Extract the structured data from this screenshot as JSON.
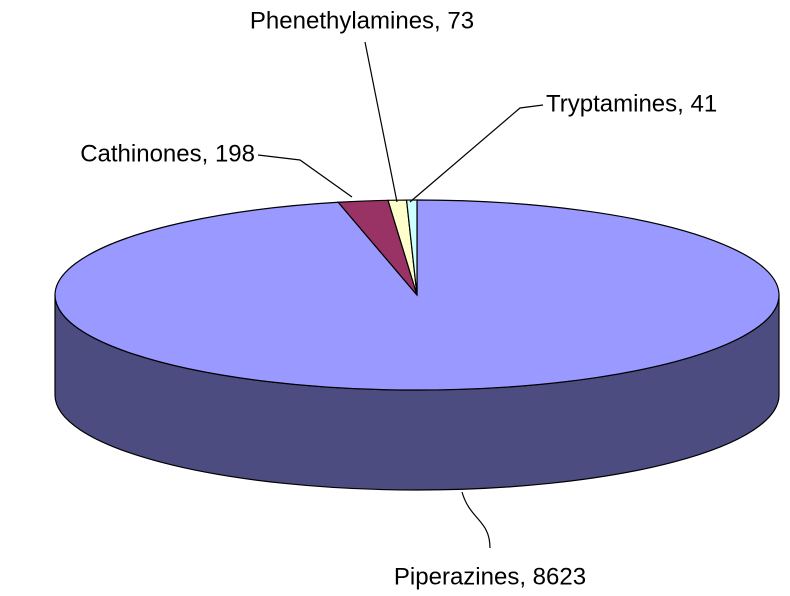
{
  "chart_data": {
    "type": "pie",
    "style": "3d",
    "labels": [
      "Piperazines, 8623",
      "Cathinones, 198",
      "Phenethylamines, 73",
      "Tryptamines, 41"
    ],
    "values": [
      8623,
      198,
      73,
      41
    ],
    "colors": [
      "#9999ff",
      "#993366",
      "#ffffcc",
      "#ccffff"
    ],
    "side_colors": [
      "#4c4c80",
      "#4c1a33",
      "#808066",
      "#668080"
    ]
  }
}
